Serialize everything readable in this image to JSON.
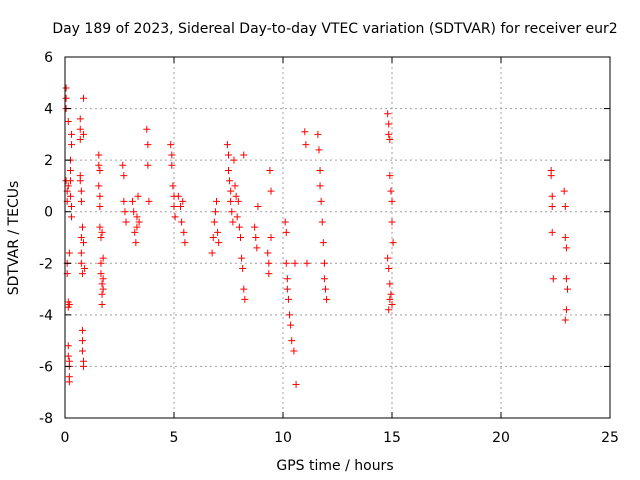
{
  "chart_data": {
    "type": "scatter",
    "title": "Day 189 of 2023, Sidereal Day-to-day VTEC variation (SDTVAR) for receiver eur2",
    "xlabel": "GPS time / hours",
    "ylabel": "SDTVAR / TECUs",
    "xlim": [
      0,
      25
    ],
    "ylim": [
      -8,
      6
    ],
    "xticks": [
      0,
      5,
      10,
      15,
      20,
      25
    ],
    "xtick_labels": [
      "0",
      "5",
      "10",
      "15",
      "20",
      "25"
    ],
    "yticks": [
      -8,
      -6,
      -4,
      -2,
      0,
      2,
      4,
      6
    ],
    "ytick_labels": [
      "-8",
      "-6",
      "-4",
      "-2",
      "0",
      "2",
      "4",
      "6"
    ],
    "grid": true,
    "marker": "+",
    "color": "#ff0000",
    "series": [
      {
        "name": "SDTVAR",
        "x": [
          0.05,
          0.05,
          0.05,
          0.05,
          0.1,
          0.1,
          0.1,
          0.1,
          0.15,
          0.15,
          0.15,
          0.15,
          0.2,
          0.2,
          0.2,
          0.2,
          0.25,
          0.25,
          0.25,
          0.25,
          0.3,
          0.3,
          0.3,
          0.3,
          0.2,
          0.2,
          0.15,
          0.15,
          0.7,
          0.7,
          0.7,
          0.7,
          0.75,
          0.75,
          0.75,
          0.75,
          0.8,
          0.8,
          0.8,
          0.8,
          0.85,
          0.85,
          0.85,
          0.85,
          0.7,
          0.75,
          0.8,
          0.85,
          0.9,
          1.55,
          1.55,
          1.55,
          1.6,
          1.6,
          1.6,
          1.65,
          1.65,
          1.65,
          1.7,
          1.7,
          1.7,
          1.75,
          1.75,
          1.75,
          1.6,
          1.7,
          2.65,
          2.7,
          2.7,
          2.75,
          2.8,
          3.1,
          3.15,
          3.2,
          3.25,
          3.3,
          3.3,
          3.35,
          3.4,
          3.75,
          3.8,
          3.8,
          3.85,
          4.85,
          4.9,
          4.9,
          4.95,
          5.0,
          5.0,
          5.05,
          5.2,
          5.3,
          5.35,
          5.4,
          5.45,
          5.5,
          6.75,
          6.8,
          6.85,
          6.9,
          6.95,
          7.0,
          7.05,
          7.45,
          7.5,
          7.5,
          7.55,
          7.6,
          7.6,
          7.65,
          7.7,
          7.75,
          7.8,
          7.85,
          7.9,
          7.95,
          8.0,
          8.05,
          8.1,
          8.15,
          8.2,
          8.2,
          8.25,
          8.7,
          8.75,
          8.8,
          8.85,
          9.3,
          9.35,
          9.35,
          9.4,
          9.45,
          9.45,
          10.1,
          10.15,
          10.15,
          10.2,
          10.2,
          10.25,
          10.3,
          10.35,
          10.4,
          10.5,
          10.55,
          10.6,
          11.0,
          11.05,
          11.1,
          11.6,
          11.65,
          11.7,
          11.7,
          11.75,
          11.8,
          11.85,
          11.9,
          11.9,
          11.95,
          12.0,
          14.8,
          14.85,
          14.85,
          14.9,
          14.9,
          14.95,
          15.0,
          15.0,
          15.05,
          14.8,
          14.85,
          14.9,
          14.95,
          15.0,
          14.85,
          14.9,
          22.3,
          22.3,
          22.35,
          22.35,
          22.35,
          22.4,
          22.9,
          22.95,
          22.95,
          23.0,
          23.0,
          23.05,
          23.0,
          22.95
        ],
        "y": [
          4.8,
          4.4,
          4.0,
          1.2,
          0.8,
          0.4,
          -2.0,
          -2.4,
          -3.5,
          -3.7,
          -5.2,
          -5.6,
          -6.0,
          -6.4,
          -6.6,
          -1.6,
          2.0,
          1.6,
          1.2,
          0.6,
          3.0,
          2.6,
          0.2,
          -0.2,
          -3.6,
          -5.8,
          1.0,
          3.5,
          3.6,
          3.2,
          2.8,
          1.2,
          0.8,
          -1.0,
          -1.6,
          -2.0,
          -2.4,
          -4.6,
          -5.0,
          -5.4,
          -5.8,
          -6.0,
          4.4,
          3.0,
          1.4,
          0.4,
          -0.6,
          -1.2,
          -2.2,
          2.2,
          1.8,
          1.0,
          0.6,
          0.2,
          -0.6,
          -1.0,
          -2.0,
          -2.4,
          -2.8,
          -3.2,
          -3.6,
          -3.0,
          -1.8,
          -2.6,
          1.6,
          -0.8,
          1.8,
          1.4,
          0.4,
          0.0,
          -0.4,
          0.4,
          0.0,
          -0.8,
          -1.2,
          -0.2,
          -0.6,
          0.6,
          -0.4,
          3.2,
          2.6,
          1.8,
          0.4,
          2.6,
          2.2,
          1.8,
          1.0,
          0.6,
          0.2,
          -0.2,
          0.6,
          0.2,
          -0.4,
          0.4,
          -0.8,
          -1.2,
          -1.6,
          -1.0,
          -0.4,
          0.0,
          0.4,
          -0.8,
          -1.2,
          2.6,
          2.2,
          1.6,
          1.2,
          0.8,
          0.4,
          0.0,
          -0.4,
          2.0,
          1.0,
          0.6,
          -0.2,
          0.4,
          -0.6,
          -1.0,
          -1.8,
          -2.2,
          2.2,
          -3.0,
          -3.4,
          -0.6,
          -1.0,
          -1.4,
          0.2,
          -1.6,
          -2.0,
          -2.4,
          1.6,
          0.8,
          -1.0,
          -0.4,
          -0.8,
          -2.0,
          -2.6,
          -3.0,
          -3.4,
          -4.0,
          -4.4,
          -5.0,
          -5.4,
          -2.0,
          -6.7,
          3.1,
          2.6,
          -2.0,
          3.0,
          2.4,
          1.6,
          1.0,
          0.4,
          -0.4,
          -1.2,
          -2.0,
          -2.6,
          -3.0,
          -3.4,
          3.8,
          3.4,
          3.0,
          2.8,
          1.4,
          0.8,
          0.4,
          -0.4,
          -1.2,
          -1.8,
          -2.2,
          -2.8,
          -3.2,
          -3.6,
          -3.8,
          -3.4,
          1.6,
          1.4,
          0.6,
          0.2,
          -0.8,
          -2.6,
          0.8,
          0.2,
          -1.0,
          -1.4,
          -2.6,
          -3.0,
          -3.8,
          -4.2
        ]
      }
    ]
  }
}
